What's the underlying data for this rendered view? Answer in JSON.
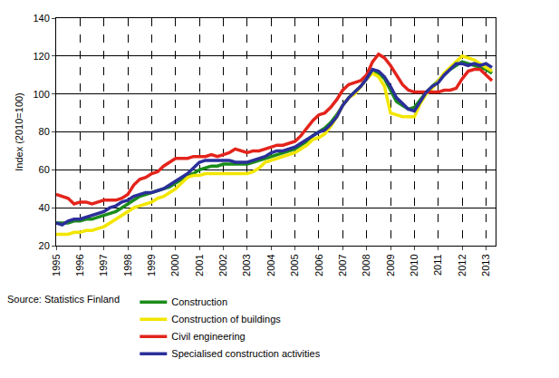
{
  "chart_data": {
    "type": "line",
    "y_label": "Index (2010=100)",
    "source": "Source: Statistics Finland",
    "x": [
      1995,
      1995.25,
      1995.5,
      1995.75,
      1996,
      1996.25,
      1996.5,
      1996.75,
      1997,
      1997.25,
      1997.5,
      1997.75,
      1998,
      1998.25,
      1998.5,
      1998.75,
      1999,
      1999.25,
      1999.5,
      1999.75,
      2000,
      2000.25,
      2000.5,
      2000.75,
      2001,
      2001.25,
      2001.5,
      2001.75,
      2002,
      2002.25,
      2002.5,
      2002.75,
      2003,
      2003.25,
      2003.5,
      2003.75,
      2004,
      2004.25,
      2004.5,
      2004.75,
      2005,
      2005.25,
      2005.5,
      2005.75,
      2006,
      2006.25,
      2006.5,
      2006.75,
      2007,
      2007.25,
      2007.5,
      2007.75,
      2008,
      2008.25,
      2008.5,
      2008.75,
      2009,
      2009.25,
      2009.5,
      2009.75,
      2010,
      2010.25,
      2010.5,
      2010.75,
      2011,
      2011.25,
      2011.5,
      2011.75,
      2012,
      2012.25,
      2012.5,
      2012.75,
      2013,
      2013.25
    ],
    "series": [
      {
        "name": "Construction",
        "color": "#1a8c1a",
        "values": [
          32,
          32,
          32,
          33,
          33,
          34,
          34,
          35,
          36,
          37,
          38,
          40,
          42,
          44,
          46,
          47,
          48,
          49,
          50,
          51,
          53,
          55,
          57,
          58,
          60,
          61,
          62,
          62,
          63,
          63,
          63,
          63,
          63,
          64,
          65,
          66,
          67,
          68,
          69,
          70,
          71,
          73,
          75,
          78,
          80,
          82,
          85,
          89,
          94,
          98,
          101,
          104,
          108,
          112,
          111,
          108,
          102,
          96,
          94,
          92,
          93,
          97,
          101,
          104,
          107,
          110,
          113,
          115,
          117,
          116,
          115,
          114,
          113,
          111
        ]
      },
      {
        "name": "Construction of buildings",
        "color": "#f2e600",
        "values": [
          26,
          26,
          26,
          27,
          27,
          28,
          28,
          29,
          30,
          32,
          34,
          36,
          38,
          40,
          41,
          42,
          43,
          45,
          46,
          48,
          50,
          53,
          56,
          57,
          57,
          58,
          58,
          58,
          58,
          58,
          58,
          58,
          58,
          59,
          61,
          64,
          65,
          66,
          67,
          68,
          69,
          71,
          73,
          76,
          77,
          79,
          83,
          88,
          94,
          98,
          100,
          104,
          108,
          111,
          109,
          104,
          90,
          89,
          88,
          88,
          88,
          95,
          100,
          103,
          107,
          111,
          114,
          117,
          120,
          119,
          118,
          116,
          114,
          112
        ]
      },
      {
        "name": "Civil engineering",
        "color": "#e3241c",
        "values": [
          47,
          46,
          45,
          42,
          43,
          43,
          42,
          43,
          44,
          44,
          44,
          45,
          47,
          52,
          55,
          56,
          58,
          59,
          62,
          64,
          66,
          66,
          66,
          67,
          67,
          67,
          68,
          67,
          68,
          69,
          71,
          70,
          69,
          70,
          70,
          71,
          72,
          73,
          73,
          74,
          75,
          78,
          82,
          86,
          89,
          90,
          93,
          97,
          102,
          105,
          106,
          107,
          110,
          117,
          121,
          119,
          115,
          110,
          105,
          102,
          101,
          101,
          101,
          101,
          101,
          102,
          102,
          103,
          108,
          112,
          113,
          113,
          110,
          107
        ]
      },
      {
        "name": "Specialised construction activities",
        "color": "#2b2f9a",
        "values": [
          32,
          31,
          33,
          34,
          34,
          35,
          36,
          37,
          38,
          40,
          41,
          43,
          44,
          46,
          47,
          48,
          48,
          49,
          50,
          52,
          54,
          56,
          58,
          61,
          64,
          65,
          65,
          65,
          65,
          65,
          64,
          64,
          64,
          65,
          66,
          67,
          69,
          70,
          70,
          71,
          72,
          74,
          76,
          78,
          80,
          81,
          84,
          88,
          94,
          98,
          101,
          104,
          108,
          113,
          112,
          109,
          104,
          98,
          95,
          92,
          91,
          96,
          101,
          104,
          106,
          110,
          113,
          116,
          116,
          115,
          116,
          115,
          116,
          114
        ]
      }
    ],
    "xlim": [
      1995,
      2013.4
    ],
    "xticks": [
      1995,
      1996,
      1997,
      1998,
      1999,
      2000,
      2001,
      2002,
      2003,
      2004,
      2005,
      2006,
      2007,
      2008,
      2009,
      2010,
      2011,
      2012,
      2013
    ],
    "ylim": [
      20,
      140
    ],
    "yticks": [
      20,
      40,
      60,
      80,
      100,
      120,
      140
    ],
    "grid": true,
    "legend": "bottom"
  }
}
